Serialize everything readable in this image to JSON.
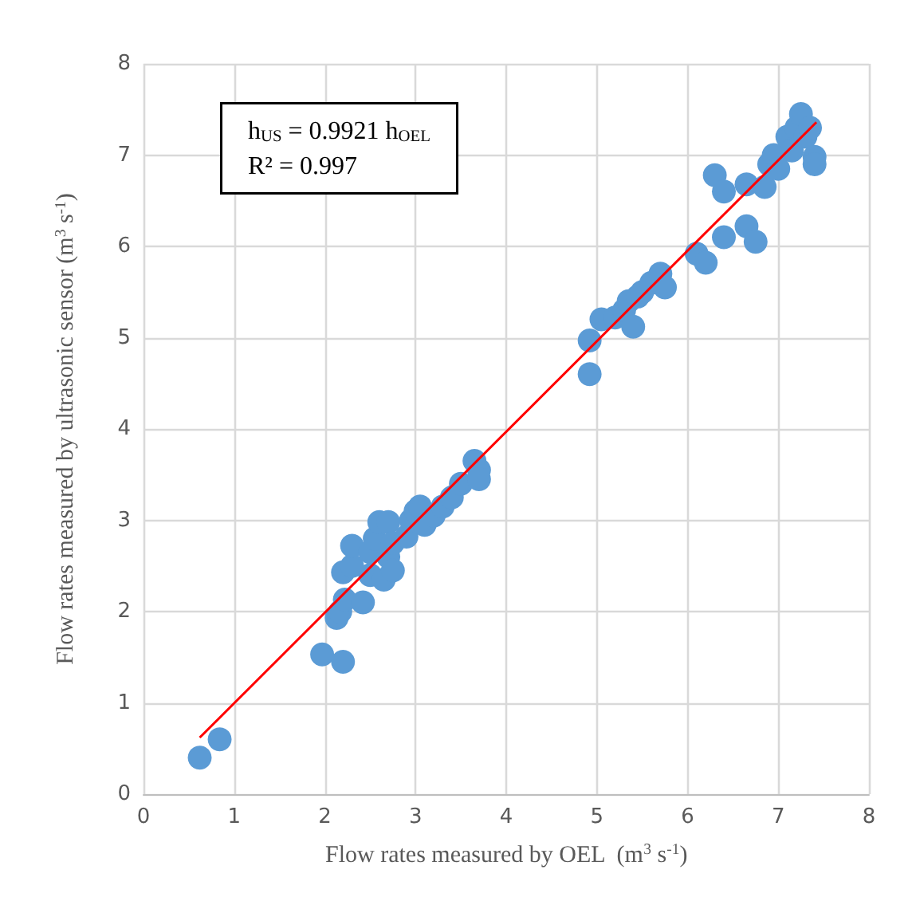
{
  "chart_data": {
    "type": "scatter",
    "xlabel": "Flow rates measured by OEL  (m$^{3}$ s$^{-1}$)",
    "ylabel": "Flow rates measured by ultrasonic sensor (m$^{3}$ s$^{-1}$)",
    "annotations": [
      "h$_{US}$ = 0.9921 h$_{OEL}$\nR² = 0.997"
    ],
    "xlim": [
      0,
      8
    ],
    "xticks": [
      0,
      1,
      2,
      3,
      4,
      5,
      6,
      7,
      8
    ],
    "ylim": [
      0,
      8
    ],
    "yticks": [
      0,
      1,
      2,
      3,
      4,
      5,
      6,
      7,
      8
    ],
    "grid": true,
    "marker": "circle",
    "series": [
      {
        "color": "#5b9bd5",
        "x": [
          0.62,
          0.84,
          1.97,
          2.2,
          2.13,
          2.17,
          2.22,
          2.2,
          2.3,
          2.3,
          2.42,
          2.5,
          2.5,
          2.55,
          2.6,
          2.65,
          2.7,
          2.7,
          2.75,
          2.75,
          2.9,
          2.95,
          3.0,
          3.05,
          3.1,
          3.2,
          3.3,
          3.4,
          3.5,
          3.65,
          3.7,
          3.7,
          4.92,
          4.92,
          5.05,
          5.2,
          5.3,
          5.35,
          5.4,
          5.45,
          5.5,
          5.6,
          5.7,
          5.75,
          6.1,
          6.2,
          6.3,
          6.4,
          6.4,
          6.65,
          6.75,
          6.65,
          6.85,
          6.9,
          6.95,
          7.0,
          7.1,
          7.15,
          7.2,
          7.25,
          7.3,
          7.35,
          7.4,
          7.4
        ],
        "values": [
          0.4,
          0.6,
          1.53,
          1.45,
          1.93,
          2.0,
          2.13,
          2.43,
          2.5,
          2.72,
          2.1,
          2.4,
          2.65,
          2.8,
          2.98,
          2.35,
          2.6,
          2.98,
          2.45,
          2.75,
          2.82,
          3.0,
          3.1,
          3.15,
          2.95,
          3.05,
          3.15,
          3.25,
          3.4,
          3.65,
          3.55,
          3.45,
          4.97,
          4.6,
          5.2,
          5.22,
          5.3,
          5.4,
          5.12,
          5.45,
          5.5,
          5.6,
          5.7,
          5.55,
          5.92,
          5.82,
          6.78,
          6.6,
          6.1,
          6.22,
          6.05,
          6.68,
          6.65,
          6.9,
          7.0,
          6.85,
          7.2,
          7.05,
          7.3,
          7.45,
          7.2,
          7.3,
          6.98,
          6.9
        ]
      },
      {
        "type": "line",
        "color": "#ff0000",
        "marker": "none",
        "x": [
          0.62,
          7.42
        ],
        "values": [
          0.62,
          7.36
        ]
      }
    ]
  }
}
